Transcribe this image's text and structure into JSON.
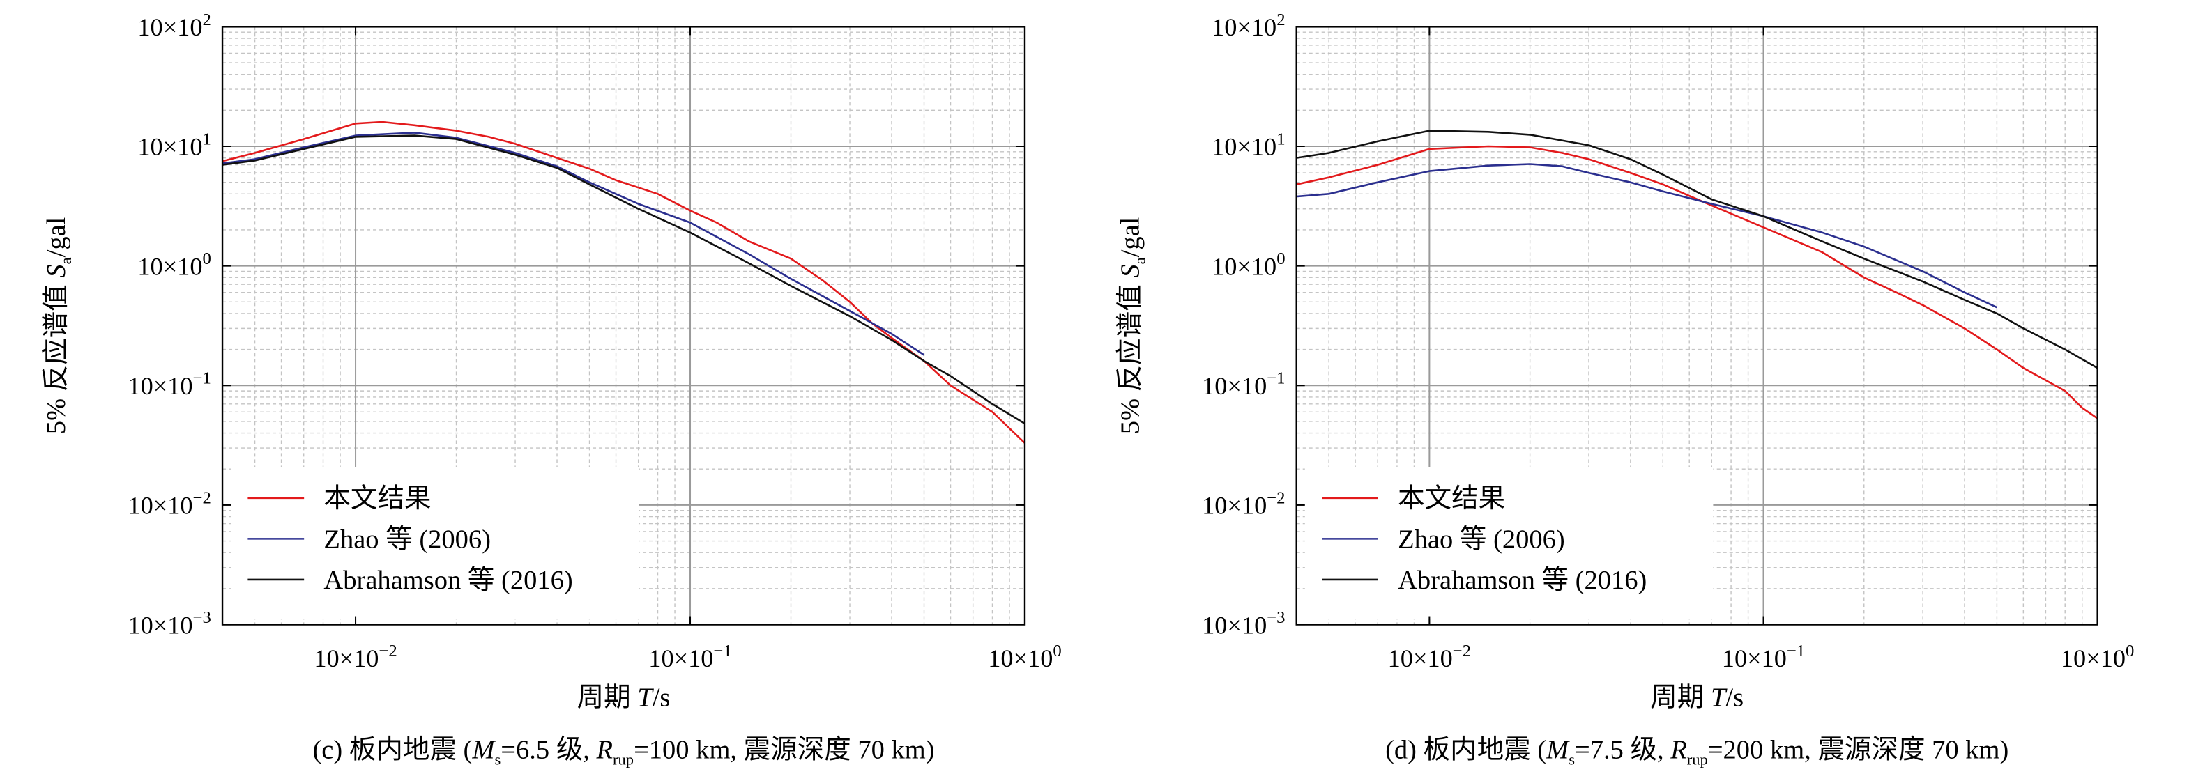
{
  "chart_data": [
    {
      "type": "line",
      "panel": "c",
      "caption": {
        "prefix": "(c) 板内地震 (",
        "m": "M",
        "m_sub": "s",
        "m_val": "=6.5 级, ",
        "r": "R",
        "r_sub": "rup",
        "r_val": "=100 km, 震源深度 70 km)"
      },
      "xlabel": {
        "main": "周期 ",
        "var": "T",
        "unit": "/s"
      },
      "ylabel": {
        "main": "5% 反应谱值 ",
        "var": "S",
        "sub": "a",
        "unit": "/gal"
      },
      "x_scale": "log",
      "y_scale": "log",
      "xlim": [
        0.004,
        1.0
      ],
      "ylim": [
        0.001,
        100
      ],
      "x_ticks": [
        {
          "value": 0.01,
          "base": "10×10",
          "exp": "−2"
        },
        {
          "value": 0.1,
          "base": "10×10",
          "exp": "−1"
        },
        {
          "value": 1,
          "base": "10×10",
          "exp": "0"
        }
      ],
      "y_ticks": [
        {
          "value": 100,
          "base": "10×10",
          "exp": "2"
        },
        {
          "value": 10,
          "base": "10×10",
          "exp": "1"
        },
        {
          "value": 1,
          "base": "10×10",
          "exp": "0"
        },
        {
          "value": 0.1,
          "base": "10×10",
          "exp": "−1"
        },
        {
          "value": 0.01,
          "base": "10×10",
          "exp": "−2"
        },
        {
          "value": 0.001,
          "base": "10×10",
          "exp": "−3"
        }
      ],
      "grid": true,
      "legend_position": "bottom-left",
      "series": [
        {
          "name": "本文结果",
          "color": "#e31a1c",
          "points": [
            [
              0.004,
              7.5
            ],
            [
              0.005,
              8.8
            ],
            [
              0.007,
              11.5
            ],
            [
              0.01,
              15.5
            ],
            [
              0.012,
              16.0
            ],
            [
              0.015,
              15.0
            ],
            [
              0.02,
              13.5
            ],
            [
              0.025,
              12.0
            ],
            [
              0.03,
              10.5
            ],
            [
              0.04,
              8.0
            ],
            [
              0.05,
              6.5
            ],
            [
              0.06,
              5.2
            ],
            [
              0.08,
              4.0
            ],
            [
              0.1,
              2.9
            ],
            [
              0.12,
              2.3
            ],
            [
              0.15,
              1.6
            ],
            [
              0.2,
              1.15
            ],
            [
              0.25,
              0.75
            ],
            [
              0.3,
              0.5
            ],
            [
              0.35,
              0.33
            ],
            [
              0.4,
              0.25
            ],
            [
              0.5,
              0.16
            ],
            [
              0.6,
              0.1
            ],
            [
              0.8,
              0.06
            ],
            [
              1.0,
              0.033
            ]
          ]
        },
        {
          "name": "Zhao 等 (2006)",
          "color": "#2b2f8f",
          "points": [
            [
              0.004,
              7.2
            ],
            [
              0.005,
              7.8
            ],
            [
              0.007,
              9.8
            ],
            [
              0.01,
              12.3
            ],
            [
              0.015,
              13.0
            ],
            [
              0.02,
              11.8
            ],
            [
              0.03,
              8.8
            ],
            [
              0.04,
              6.8
            ],
            [
              0.05,
              5.0
            ],
            [
              0.07,
              3.3
            ],
            [
              0.1,
              2.3
            ],
            [
              0.15,
              1.25
            ],
            [
              0.2,
              0.78
            ],
            [
              0.3,
              0.42
            ],
            [
              0.4,
              0.27
            ],
            [
              0.5,
              0.18
            ]
          ]
        },
        {
          "name": "Abrahamson 等 (2016)",
          "color": "#111111",
          "points": [
            [
              0.004,
              7.0
            ],
            [
              0.005,
              7.6
            ],
            [
              0.007,
              9.5
            ],
            [
              0.01,
              12.0
            ],
            [
              0.015,
              12.3
            ],
            [
              0.02,
              11.5
            ],
            [
              0.03,
              8.5
            ],
            [
              0.04,
              6.6
            ],
            [
              0.05,
              4.8
            ],
            [
              0.07,
              3.0
            ],
            [
              0.1,
              1.9
            ],
            [
              0.15,
              1.05
            ],
            [
              0.2,
              0.68
            ],
            [
              0.3,
              0.38
            ],
            [
              0.4,
              0.24
            ],
            [
              0.5,
              0.16
            ],
            [
              0.6,
              0.12
            ],
            [
              0.8,
              0.07
            ],
            [
              1.0,
              0.048
            ]
          ]
        }
      ]
    },
    {
      "type": "line",
      "panel": "d",
      "caption": {
        "prefix": "(d) 板内地震 (",
        "m": "M",
        "m_sub": "s",
        "m_val": "=7.5 级, ",
        "r": "R",
        "r_sub": "rup",
        "r_val": "=200 km, 震源深度 70 km)"
      },
      "xlabel": {
        "main": "周期 ",
        "var": "T",
        "unit": "/s"
      },
      "ylabel": {
        "main": "5% 反应谱值 ",
        "var": "S",
        "sub": "a",
        "unit": "/gal"
      },
      "x_scale": "log",
      "y_scale": "log",
      "xlim": [
        0.004,
        1.0
      ],
      "ylim": [
        0.001,
        100
      ],
      "x_ticks": [
        {
          "value": 0.01,
          "base": "10×10",
          "exp": "−2"
        },
        {
          "value": 0.1,
          "base": "10×10",
          "exp": "−1"
        },
        {
          "value": 1,
          "base": "10×10",
          "exp": "0"
        }
      ],
      "y_ticks": [
        {
          "value": 100,
          "base": "10×10",
          "exp": "2"
        },
        {
          "value": 10,
          "base": "10×10",
          "exp": "1"
        },
        {
          "value": 1,
          "base": "10×10",
          "exp": "0"
        },
        {
          "value": 0.1,
          "base": "10×10",
          "exp": "−1"
        },
        {
          "value": 0.01,
          "base": "10×10",
          "exp": "−2"
        },
        {
          "value": 0.001,
          "base": "10×10",
          "exp": "−3"
        }
      ],
      "grid": true,
      "legend_position": "bottom-left",
      "series": [
        {
          "name": "本文结果",
          "color": "#e31a1c",
          "points": [
            [
              0.004,
              4.8
            ],
            [
              0.005,
              5.5
            ],
            [
              0.007,
              7.0
            ],
            [
              0.01,
              9.5
            ],
            [
              0.015,
              10.0
            ],
            [
              0.02,
              9.8
            ],
            [
              0.025,
              8.8
            ],
            [
              0.03,
              7.8
            ],
            [
              0.04,
              6.0
            ],
            [
              0.05,
              4.8
            ],
            [
              0.07,
              3.2
            ],
            [
              0.1,
              2.1
            ],
            [
              0.15,
              1.3
            ],
            [
              0.2,
              0.8
            ],
            [
              0.25,
              0.6
            ],
            [
              0.3,
              0.47
            ],
            [
              0.4,
              0.3
            ],
            [
              0.5,
              0.2
            ],
            [
              0.6,
              0.14
            ],
            [
              0.8,
              0.09
            ],
            [
              0.9,
              0.065
            ],
            [
              1.0,
              0.053
            ]
          ]
        },
        {
          "name": "Zhao 等 (2006)",
          "color": "#2b2f8f",
          "points": [
            [
              0.004,
              3.8
            ],
            [
              0.005,
              4.0
            ],
            [
              0.007,
              5.0
            ],
            [
              0.01,
              6.2
            ],
            [
              0.015,
              6.9
            ],
            [
              0.02,
              7.1
            ],
            [
              0.025,
              6.8
            ],
            [
              0.03,
              6.0
            ],
            [
              0.04,
              5.0
            ],
            [
              0.05,
              4.2
            ],
            [
              0.07,
              3.3
            ],
            [
              0.1,
              2.6
            ],
            [
              0.15,
              1.9
            ],
            [
              0.2,
              1.45
            ],
            [
              0.3,
              0.9
            ],
            [
              0.4,
              0.6
            ],
            [
              0.5,
              0.45
            ]
          ]
        },
        {
          "name": "Abrahamson 等 (2016)",
          "color": "#111111",
          "points": [
            [
              0.004,
              8.0
            ],
            [
              0.005,
              8.8
            ],
            [
              0.007,
              11.0
            ],
            [
              0.01,
              13.5
            ],
            [
              0.015,
              13.2
            ],
            [
              0.02,
              12.5
            ],
            [
              0.03,
              10.2
            ],
            [
              0.04,
              7.8
            ],
            [
              0.05,
              5.8
            ],
            [
              0.07,
              3.6
            ],
            [
              0.1,
              2.6
            ],
            [
              0.15,
              1.6
            ],
            [
              0.2,
              1.15
            ],
            [
              0.3,
              0.74
            ],
            [
              0.4,
              0.52
            ],
            [
              0.5,
              0.4
            ],
            [
              0.6,
              0.3
            ],
            [
              0.8,
              0.2
            ],
            [
              1.0,
              0.14
            ]
          ]
        }
      ]
    }
  ]
}
